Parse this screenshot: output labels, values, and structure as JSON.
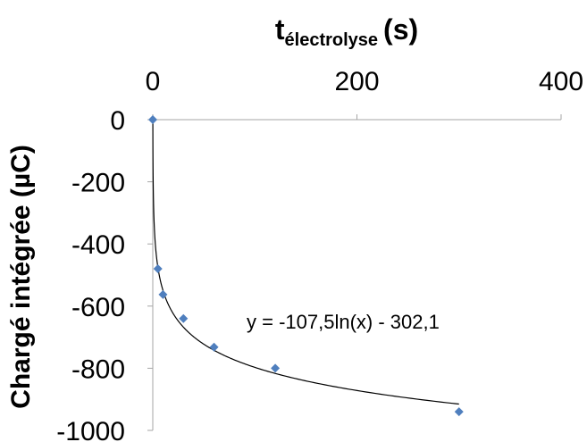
{
  "chart_data": {
    "type": "scatter",
    "title": "",
    "xlabel": "t",
    "xlabel_subscript": "électrolyse",
    "xlabel_unit": "(s)",
    "ylabel": "Chargé intégrée (µC)",
    "xlim": [
      0,
      400
    ],
    "ylim": [
      -1000,
      0
    ],
    "x_ticks": [
      "0",
      "200",
      "400"
    ],
    "y_ticks": [
      "0",
      "-200",
      "-400",
      "-600",
      "-800",
      "-1000"
    ],
    "x_axis_position": "top",
    "grid": false,
    "legend": "none",
    "series": [
      {
        "x": [
          0,
          5,
          10,
          30,
          60,
          120,
          300
        ],
        "y": [
          0,
          -480,
          -563,
          -640,
          -732,
          -800,
          -940
        ],
        "marker": "diamond",
        "color": "#4f7fbe"
      }
    ],
    "trendline": {
      "type": "log",
      "a": -107.5,
      "b": -302.1,
      "x_range": [
        0,
        300
      ],
      "color": "#000000",
      "equation": "y = -107,5ln(x) - 302,1"
    }
  }
}
